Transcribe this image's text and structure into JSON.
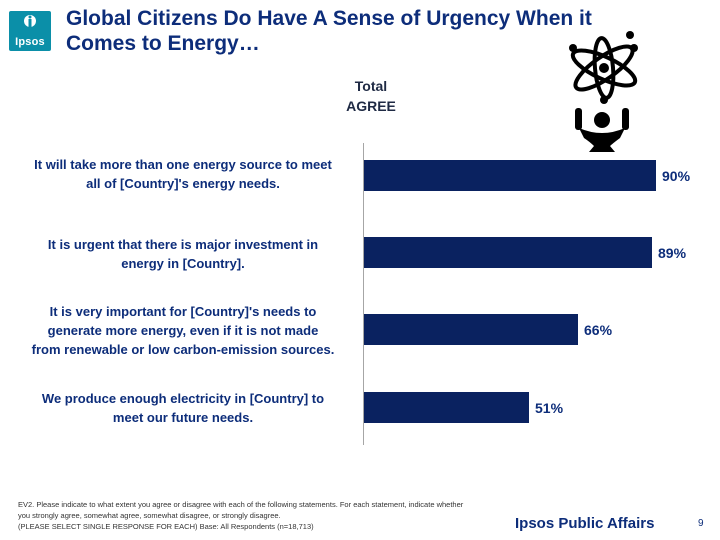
{
  "logo": {
    "text": "Ipsos",
    "color": "#0b8fa8"
  },
  "title": "Global Citizens Do Have A Sense of Urgency When it Comes to Energy…",
  "column_header": {
    "line1": "Total",
    "line2": "AGREE"
  },
  "chart_data": {
    "type": "bar",
    "orientation": "horizontal",
    "categories": [
      "It will take more than one energy source to meet all of [Country]'s energy needs.",
      "It is urgent that there is major investment in energy in [Country].",
      "It is very important for [Country]'s needs to generate more energy, even if it is not made from renewable or low carbon-emission sources.",
      "We produce enough electricity in [Country] to meet our future needs."
    ],
    "category_lines": [
      [
        "It will take more than one energy source to meet",
        "all of [Country]'s energy needs."
      ],
      [
        "It is urgent that there is major investment in",
        "energy in [Country]."
      ],
      [
        "It is very important for [Country]'s needs to",
        "generate more energy, even if it is not made",
        "from renewable or low carbon-emission sources."
      ],
      [
        "We produce enough electricity in [Country] to",
        "meet our future needs."
      ]
    ],
    "values": [
      90,
      89,
      66,
      51
    ],
    "value_labels": [
      "90%",
      "89%",
      "66%",
      "51%"
    ],
    "series": [
      {
        "name": "",
        "values": [
          90,
          89,
          66,
          51
        ]
      }
    ],
    "xlim": [
      0,
      100
    ],
    "grid": false,
    "bar_color": "#0a2260"
  },
  "footnote": {
    "line1": "EV2. Please indicate to what extent you agree or disagree with each of the following statements.  For each statement, indicate whether",
    "line2": "you strongly agree, somewhat agree, somewhat disagree, or strongly disagree.",
    "line3": "(PLEASE SELECT SINGLE RESPONSE FOR EACH) Base: All Respondents (n=18,713)"
  },
  "brand": "Ipsos Public Affairs",
  "page_number": "9",
  "colors": {
    "title": "#0d2d7a",
    "bar": "#0a2260",
    "logo": "#0b8fa8"
  }
}
